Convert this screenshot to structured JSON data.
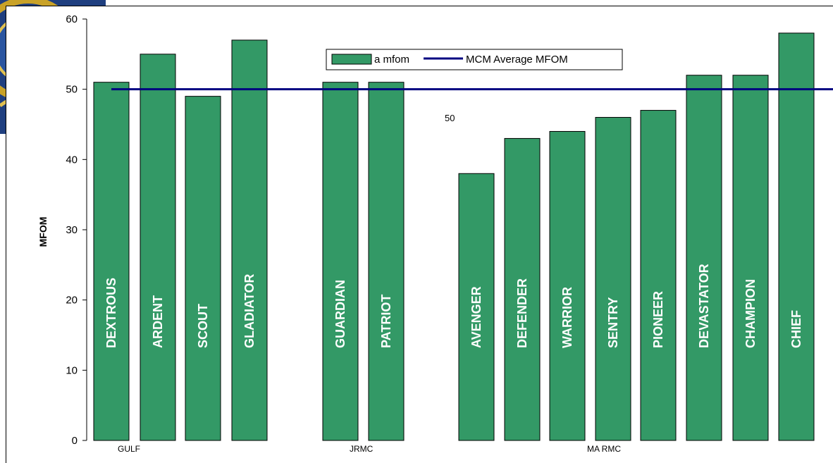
{
  "colors": {
    "bar_fill": "#339966",
    "avg_line": "#000080",
    "emblem_blue": "#1f3f7f",
    "emblem_gold": "#c9a227"
  },
  "chart_data": {
    "type": "bar",
    "ylabel": "MFOM",
    "ylim": [
      0,
      60
    ],
    "yticks": [
      0,
      10,
      20,
      30,
      40,
      50,
      60
    ],
    "grid": false,
    "legend_position": "top-center",
    "categories": [
      "DEXTROUS",
      "ARDENT",
      "SCOUT",
      "GLADIATOR",
      "GUARDIAN",
      "PATRIOT",
      "AVENGER",
      "DEFENDER",
      "WARRIOR",
      "SENTRY",
      "PIONEER",
      "DEVASTATOR",
      "CHAMPION",
      "CHIEF"
    ],
    "groups": [
      {
        "label": "GULF",
        "members": [
          "DEXTROUS",
          "ARDENT",
          "SCOUT",
          "GLADIATOR"
        ]
      },
      {
        "label": "JRMC",
        "members": [
          "GUARDIAN",
          "PATRIOT"
        ]
      },
      {
        "label": "MA RMC",
        "members": [
          "AVENGER",
          "DEFENDER",
          "WARRIOR",
          "SENTRY",
          "PIONEER",
          "DEVASTATOR",
          "CHAMPION",
          "CHIEF"
        ]
      }
    ],
    "series": [
      {
        "name": "a mfom",
        "type": "bar",
        "values": [
          51,
          55,
          49,
          57,
          51,
          51,
          38,
          43,
          44,
          46,
          47,
          52,
          52,
          58
        ]
      },
      {
        "name": "MCM Average MFOM",
        "type": "line",
        "value": 50
      }
    ],
    "annotations": [
      "50"
    ]
  }
}
